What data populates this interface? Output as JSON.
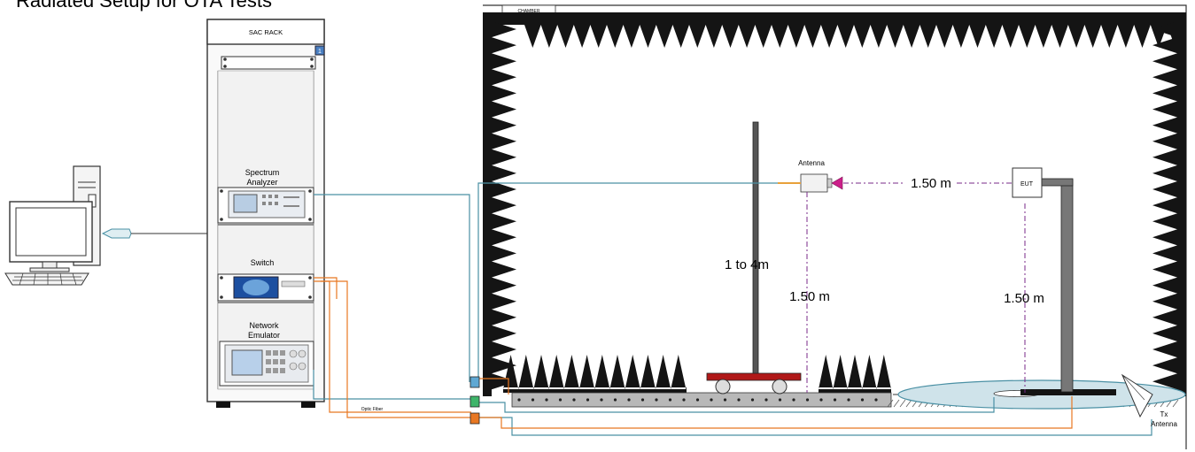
{
  "title": "Radiated Setup for OTA Tests",
  "labels": {
    "rack": "SAC RACK",
    "rack_badge": "1",
    "chamber": "CHAMBER",
    "spectrum_line1": "Spectrum",
    "spectrum_line2": "Analyzer",
    "switch": "Switch",
    "emulator_line1": "Network",
    "emulator_line2": "Emulator",
    "antenna": "Antenna",
    "eut": "EUT",
    "dist_horizontal": "1.50 m",
    "mast_range": "1 to 4m",
    "antenna_height": "1.50 m",
    "eut_height": "1.50 m",
    "optic_fiber": "Optic Fiber",
    "tx_antenna_line1": "Tx",
    "tx_antenna_line2": "Antenna"
  },
  "colors": {
    "absorber": "#141414",
    "rf_cable": "#4a90a4",
    "fiber_cable": "#e87722",
    "dim_line": "#7a2a8a",
    "turntable": "#cfe3ea",
    "table_top": "#b01818",
    "floor": "#b8b8b8"
  },
  "icons": [
    "computer-icon",
    "usb-dongle-icon",
    "spectrum-analyzer-icon",
    "switch-unit-icon",
    "network-emulator-icon",
    "horn-antenna-icon",
    "tx-antenna-icon"
  ]
}
